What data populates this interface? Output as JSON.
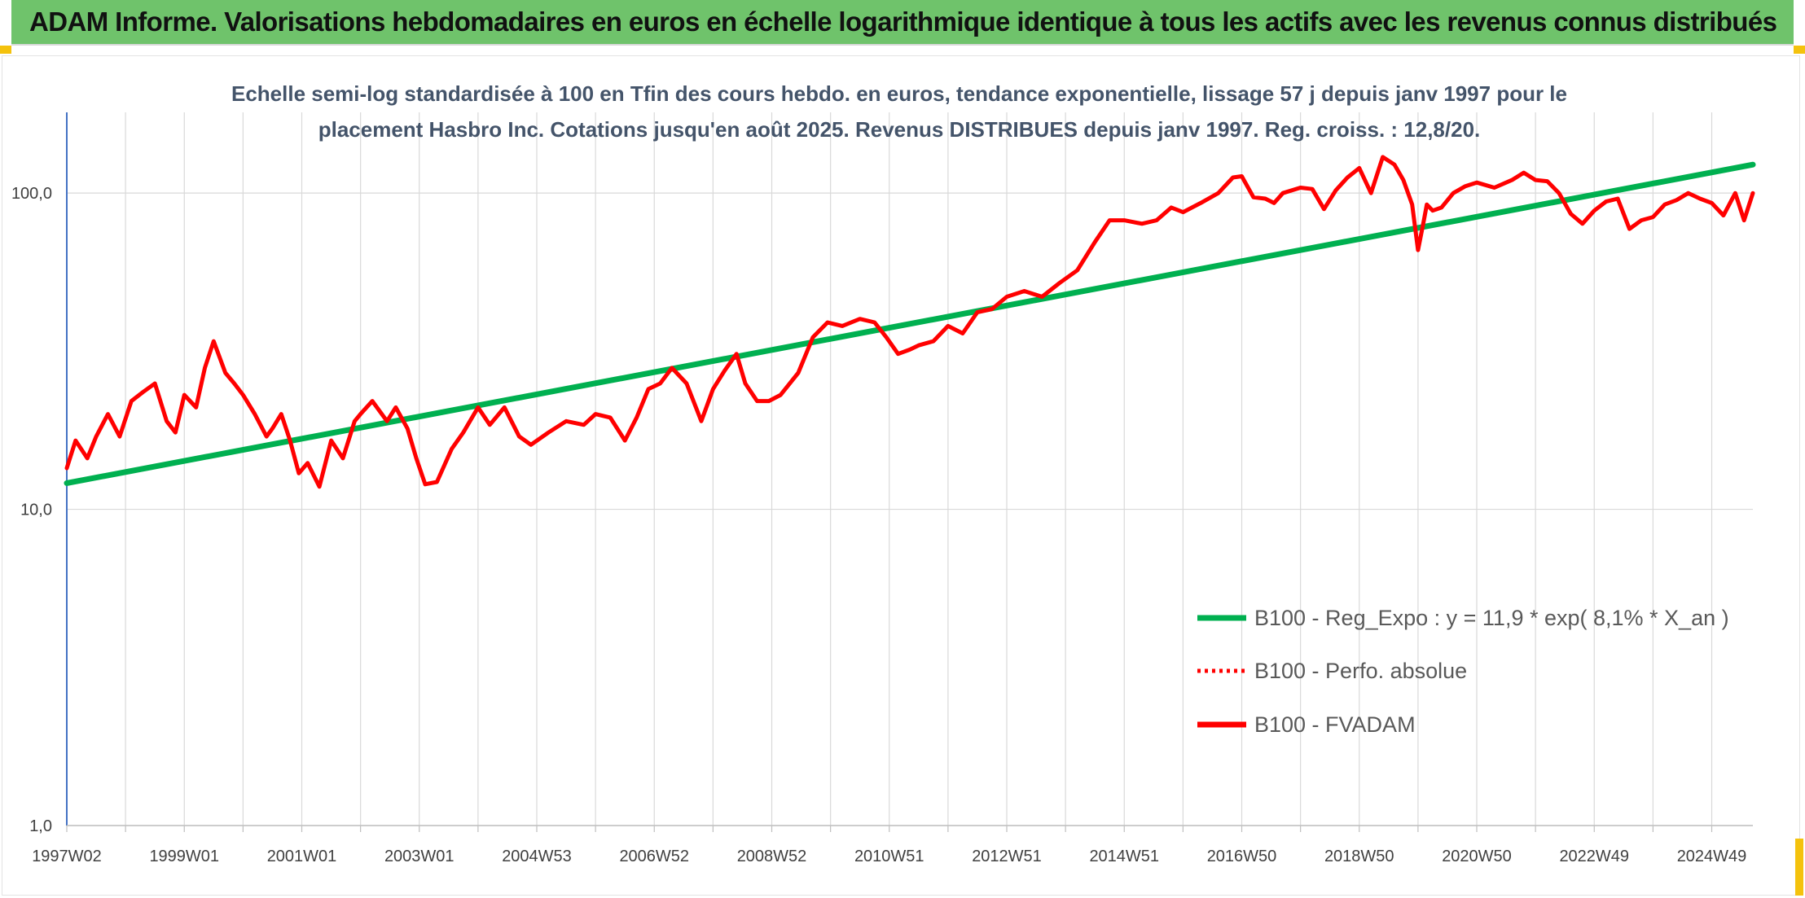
{
  "header": {
    "title": "ADAM Informe. Valorisations hebdomadaires en euros en échelle logarithmique identique à tous les actifs avec les revenus connus distribués"
  },
  "colors": {
    "header_bg": "#6fc36b",
    "regression": "#00b050",
    "fvadam": "#ff0000",
    "perfo": "#ff0000",
    "axis": "#4472c4",
    "grid": "#d9d9d9"
  },
  "chart_data": {
    "type": "line",
    "subtitle_lines": [
      "Echelle semi-log standardisée à 100 en Tfin des cours hebdo. en euros, tendance exponentielle, lissage 57 j depuis janv 1997 pour le",
      "placement Hasbro Inc. Cotations jusqu'en août 2025. Revenus DISTRIBUES depuis janv 1997. Reg. croiss. : 12,8/20."
    ],
    "y_scale": "log",
    "ylim": [
      1,
      180
    ],
    "y_ticks": [
      {
        "value": 1,
        "label": "1,0"
      },
      {
        "value": 10,
        "label": "10,0"
      },
      {
        "value": 100,
        "label": "100,0"
      }
    ],
    "xlim": [
      1997.0,
      2025.7
    ],
    "x_ticks": [
      {
        "x": 1997.0,
        "label": "1997W02"
      },
      {
        "x": 1999.0,
        "label": "1999W01"
      },
      {
        "x": 2001.0,
        "label": "2001W01"
      },
      {
        "x": 2003.0,
        "label": "2003W01"
      },
      {
        "x": 2005.0,
        "label": "2004W53"
      },
      {
        "x": 2007.0,
        "label": "2006W52"
      },
      {
        "x": 2009.0,
        "label": "2008W52"
      },
      {
        "x": 2011.0,
        "label": "2010W51"
      },
      {
        "x": 2013.0,
        "label": "2012W51"
      },
      {
        "x": 2015.0,
        "label": "2014W51"
      },
      {
        "x": 2017.0,
        "label": "2016W50"
      },
      {
        "x": 2019.0,
        "label": "2018W50"
      },
      {
        "x": 2021.0,
        "label": "2020W50"
      },
      {
        "x": 2023.0,
        "label": "2022W49"
      },
      {
        "x": 2025.0,
        "label": "2024W49"
      }
    ],
    "x_minor_ticks": [
      1998,
      2000,
      2002,
      2004,
      2006,
      2008,
      2010,
      2012,
      2014,
      2016,
      2018,
      2020,
      2022,
      2024
    ],
    "grid": true,
    "legend_position": "bottom-right",
    "series": [
      {
        "name": "B100 - Reg_Expo : y = 11,9 * exp( 8,1% *  X_an )",
        "style": "solid-green",
        "x": [
          1997.0,
          2025.7
        ],
        "y": [
          12.1,
          123.0
        ]
      },
      {
        "name": "B100 - Perfo. absolue",
        "style": "dotted-red",
        "x": [],
        "y": []
      },
      {
        "name": "B100 - FVADAM",
        "style": "solid-red",
        "x": [
          1997.0,
          1997.15,
          1997.35,
          1997.5,
          1997.7,
          1997.9,
          1998.1,
          1998.3,
          1998.5,
          1998.7,
          1998.85,
          1999.0,
          1999.2,
          1999.35,
          1999.5,
          1999.7,
          1999.85,
          2000.0,
          2000.2,
          2000.4,
          2000.5,
          2000.65,
          2000.8,
          2000.95,
          2001.1,
          2001.3,
          2001.5,
          2001.7,
          2001.9,
          2002.0,
          2002.2,
          2002.45,
          2002.6,
          2002.8,
          2002.95,
          2003.1,
          2003.3,
          2003.55,
          2003.75,
          2004.0,
          2004.2,
          2004.45,
          2004.7,
          2004.9,
          2005.2,
          2005.5,
          2005.8,
          2006.0,
          2006.25,
          2006.5,
          2006.7,
          2006.9,
          2007.1,
          2007.3,
          2007.55,
          2007.8,
          2008.0,
          2008.2,
          2008.4,
          2008.55,
          2008.75,
          2008.95,
          2009.15,
          2009.45,
          2009.7,
          2009.95,
          2010.2,
          2010.5,
          2010.75,
          2010.95,
          2011.15,
          2011.35,
          2011.5,
          2011.75,
          2012.0,
          2012.25,
          2012.5,
          2012.75,
          2013.0,
          2013.3,
          2013.6,
          2013.9,
          2014.2,
          2014.5,
          2014.75,
          2015.0,
          2015.3,
          2015.55,
          2015.8,
          2016.0,
          2016.3,
          2016.6,
          2016.85,
          2017.0,
          2017.2,
          2017.4,
          2017.55,
          2017.7,
          2018.0,
          2018.2,
          2018.4,
          2018.6,
          2018.8,
          2019.0,
          2019.2,
          2019.4,
          2019.6,
          2019.75,
          2019.9,
          2020.0,
          2020.1,
          2020.15,
          2020.25,
          2020.4,
          2020.6,
          2020.8,
          2021.0,
          2021.3,
          2021.6,
          2021.8,
          2022.0,
          2022.2,
          2022.4,
          2022.6,
          2022.8,
          2023.0,
          2023.2,
          2023.4,
          2023.6,
          2023.8,
          2024.0,
          2024.2,
          2024.4,
          2024.6,
          2024.8,
          2025.0,
          2025.2,
          2025.4,
          2025.55,
          2025.7
        ],
        "y": [
          13.5,
          16.5,
          14.5,
          17.0,
          20.0,
          17.0,
          22.0,
          23.5,
          25.0,
          19.0,
          17.5,
          23.0,
          21.0,
          28.0,
          34.0,
          27.0,
          25.0,
          23.0,
          20.0,
          17.0,
          18.0,
          20.0,
          16.5,
          13.0,
          14.0,
          11.8,
          16.5,
          14.5,
          19.0,
          20.0,
          22.0,
          19.0,
          21.0,
          18.0,
          14.5,
          12.0,
          12.2,
          15.5,
          17.5,
          21.0,
          18.5,
          21.0,
          17.0,
          16.0,
          17.5,
          19.0,
          18.5,
          20.0,
          19.5,
          16.5,
          19.5,
          24.0,
          25.0,
          28.0,
          25.0,
          19.0,
          24.0,
          27.5,
          31.0,
          25.0,
          22.0,
          22.0,
          23.0,
          27.0,
          35.0,
          39.0,
          38.0,
          40.0,
          39.0,
          35.0,
          31.0,
          32.0,
          33.0,
          34.0,
          38.0,
          36.0,
          42.0,
          43.0,
          47.0,
          49.0,
          47.0,
          52.0,
          57.0,
          70.0,
          82.0,
          82.0,
          80.0,
          82.0,
          90.0,
          87.0,
          93.0,
          100.0,
          112.0,
          113.0,
          97.0,
          96.0,
          93.0,
          100.0,
          104.0,
          103.0,
          89.0,
          102.0,
          112.0,
          120.0,
          100.0,
          130.0,
          123.0,
          110.0,
          92.0,
          66.0,
          82.0,
          92.0,
          88.0,
          90.0,
          100.0,
          105.0,
          108.0,
          104.0,
          110.0,
          116.0,
          110.0,
          109.0,
          100.0,
          86.0,
          80.0,
          88.0,
          94.0,
          96.0,
          77.0,
          82.0,
          84.0,
          92.0,
          95.0,
          100.0,
          96.0,
          93.0,
          85.0,
          100.0,
          82.0,
          100.0
        ]
      }
    ]
  }
}
